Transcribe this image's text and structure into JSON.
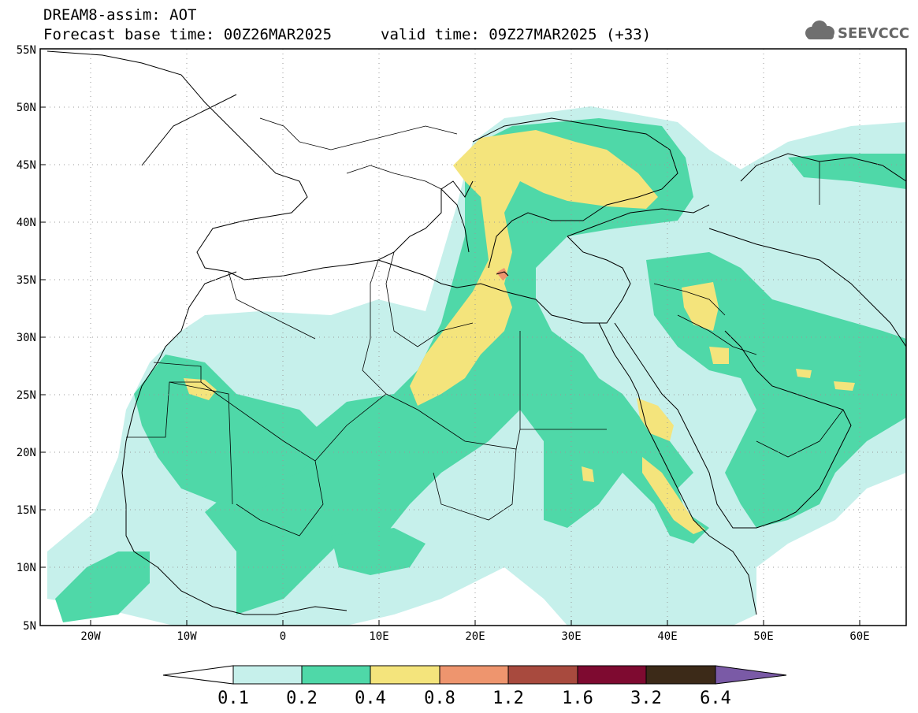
{
  "header": {
    "title": "DREAM8-assim: AOT",
    "base_time": "Forecast base time: 00Z26MAR2025",
    "valid_time": "valid time: 09Z27MAR2025 (+33)"
  },
  "logo": {
    "text": "SEEVCCC",
    "icon": "cloud-icon"
  },
  "map": {
    "lon_range": [
      -25,
      65
    ],
    "lat_range": [
      5,
      55
    ],
    "lat_ticks": [
      "55N",
      "50N",
      "45N",
      "40N",
      "35N",
      "30N",
      "25N",
      "20N",
      "15N",
      "10N",
      "5N"
    ],
    "lon_ticks": [
      "20W",
      "10W",
      "0",
      "10E",
      "20E",
      "30E",
      "40E",
      "50E",
      "60E"
    ],
    "grid": true
  },
  "legend": {
    "labels": [
      "0.1",
      "0.2",
      "0.4",
      "0.8",
      "1.2",
      "1.6",
      "3.2",
      "6.4"
    ],
    "colors": [
      "#ffffff",
      "#c6f0eb",
      "#4fd8a8",
      "#f4e47c",
      "#ee956e",
      "#a84a3e",
      "#7e0a30",
      "#3c2a18",
      "#7a5aa6"
    ]
  }
}
